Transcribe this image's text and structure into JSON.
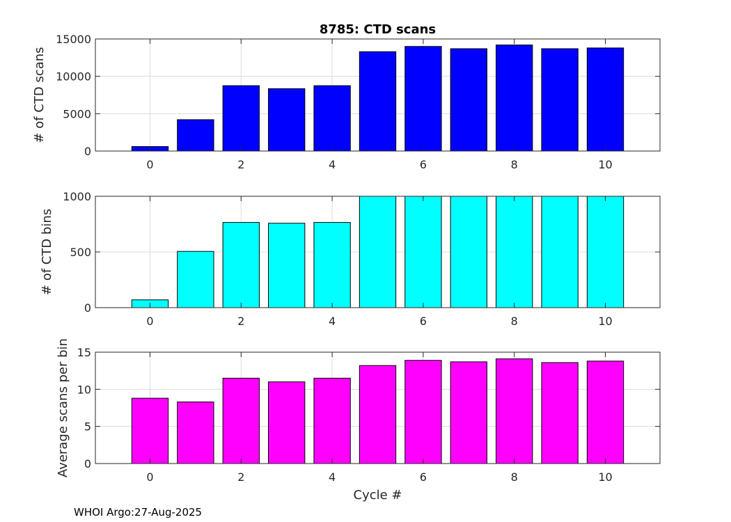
{
  "chart_data": [
    {
      "type": "bar",
      "title": "8785: CTD scans",
      "xlabel": "",
      "ylabel": "# of CTD scans",
      "categories": [
        0,
        1,
        2,
        3,
        4,
        5,
        6,
        7,
        8,
        9,
        10
      ],
      "values": [
        600,
        4200,
        8750,
        8350,
        8750,
        13300,
        14000,
        13700,
        14200,
        13700,
        13800
      ],
      "xlim": [
        -1.2,
        11.2
      ],
      "ylim": [
        0,
        15000
      ],
      "xticks": [
        0,
        2,
        4,
        6,
        8,
        10
      ],
      "yticks": [
        0,
        5000,
        10000,
        15000
      ],
      "grid": true,
      "color": "#0000ff"
    },
    {
      "type": "bar",
      "title": "",
      "xlabel": "",
      "ylabel": "# of CTD bins",
      "categories": [
        0,
        1,
        2,
        3,
        4,
        5,
        6,
        7,
        8,
        9,
        10
      ],
      "values": [
        70,
        505,
        765,
        758,
        765,
        1000,
        1000,
        1000,
        1000,
        1000,
        1000
      ],
      "xlim": [
        -1.2,
        11.2
      ],
      "ylim": [
        0,
        1000
      ],
      "xticks": [
        0,
        2,
        4,
        6,
        8,
        10
      ],
      "yticks": [
        0,
        500,
        1000
      ],
      "grid": true,
      "color": "#00ffff"
    },
    {
      "type": "bar",
      "title": "",
      "xlabel": "Cycle #",
      "ylabel": "Average scans per bin",
      "categories": [
        0,
        1,
        2,
        3,
        4,
        5,
        6,
        7,
        8,
        9,
        10
      ],
      "values": [
        8.8,
        8.3,
        11.5,
        11.0,
        11.5,
        13.2,
        13.9,
        13.7,
        14.1,
        13.6,
        13.8
      ],
      "xlim": [
        -1.2,
        11.2
      ],
      "ylim": [
        0,
        15
      ],
      "xticks": [
        0,
        2,
        4,
        6,
        8,
        10
      ],
      "yticks": [
        0,
        5,
        10,
        15
      ],
      "grid": true,
      "color": "#ff00ff"
    }
  ],
  "footer": "WHOI Argo:27-Aug-2025"
}
